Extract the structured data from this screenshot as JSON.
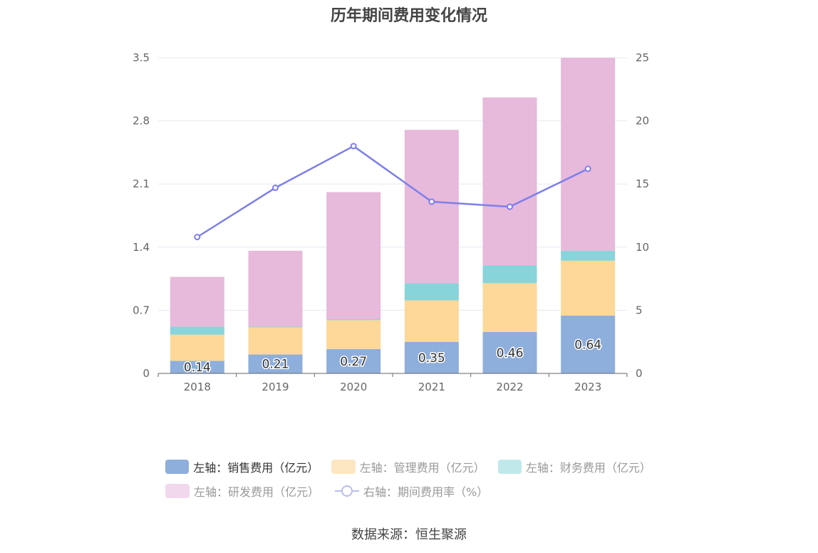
{
  "chart_data": {
    "type": "bar",
    "title": "历年期间费用变化情况",
    "categories": [
      "2018",
      "2019",
      "2020",
      "2021",
      "2022",
      "2023"
    ],
    "y_left": {
      "ticks": [
        "0",
        "0.7",
        "1.4",
        "2.1",
        "2.8",
        "3.5"
      ],
      "range": [
        0,
        3.5
      ]
    },
    "y_right": {
      "ticks": [
        "0",
        "5",
        "10",
        "15",
        "20",
        "25"
      ],
      "range": [
        0,
        25
      ]
    },
    "series": [
      {
        "name": "左轴：销售费用（亿元）",
        "type": "bar",
        "axis": "left",
        "stack": true,
        "color": "#8eaedc",
        "values": [
          0.14,
          0.21,
          0.27,
          0.35,
          0.46,
          0.64
        ],
        "labels": [
          "0.14",
          "0.21",
          "0.27",
          "0.35",
          "0.46",
          "0.64"
        ]
      },
      {
        "name": "左轴：管理费用（亿元）",
        "type": "bar",
        "axis": "left",
        "stack": true,
        "color": "#fdd898",
        "values": [
          0.29,
          0.3,
          0.32,
          0.46,
          0.54,
          0.61
        ]
      },
      {
        "name": "左轴：财务费用（亿元）",
        "type": "bar",
        "axis": "left",
        "stack": true,
        "color": "#87d4da",
        "values": [
          0.09,
          0.01,
          0.01,
          0.19,
          0.2,
          0.11
        ]
      },
      {
        "name": "左轴：研发费用（亿元）",
        "type": "bar",
        "axis": "left",
        "stack": true,
        "color": "#e7b9db",
        "values": [
          0.55,
          0.84,
          1.41,
          1.7,
          1.86,
          2.14
        ]
      },
      {
        "name": "右轴：期间费用率（%）",
        "type": "line",
        "axis": "right",
        "color": "#7d7fea",
        "values": [
          10.8,
          14.7,
          18.0,
          13.6,
          13.2,
          16.2
        ]
      }
    ],
    "legend_position": "bottom",
    "grid": true
  },
  "legend": {
    "colors": [
      "#8eaedc",
      "#fde7c2",
      "#c0e8eb",
      "#f2d8ec"
    ],
    "text_colors": [
      "#333333",
      "#999999",
      "#999999",
      "#999999",
      "#999999"
    ]
  },
  "source": "数据来源：恒生聚源"
}
